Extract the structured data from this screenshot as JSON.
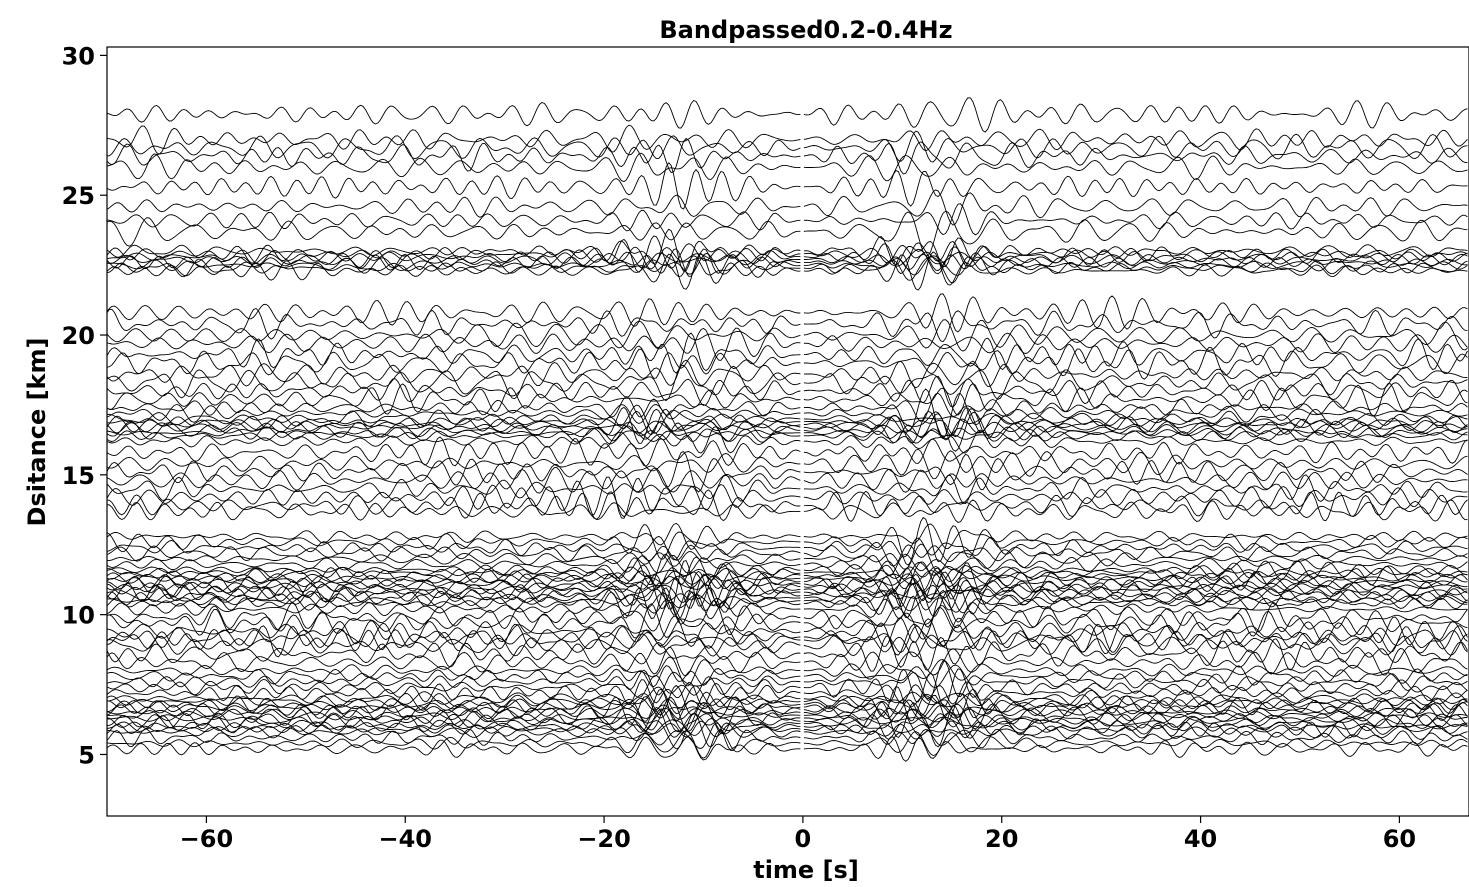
{
  "chart_data": {
    "type": "line",
    "title": "Bandpassed0.2-0.4Hz",
    "xlabel": "time [s]",
    "ylabel": "Dsitance [km]",
    "xlim": [
      -70,
      67
    ],
    "ylim": [
      2.8,
      30.3
    ],
    "xticks": [
      -60,
      -40,
      -20,
      0,
      20,
      40,
      60
    ],
    "xtick_labels": [
      "−60",
      "−40",
      "−20",
      "0",
      "20",
      "40",
      "60"
    ],
    "yticks": [
      5,
      10,
      15,
      20,
      25,
      30
    ],
    "ytick_labels": [
      "5",
      "10",
      "15",
      "20",
      "25",
      "30"
    ],
    "grid": false,
    "line_color": "#000000",
    "trace_offsets_km": [
      5.2,
      5.4,
      5.6,
      5.8,
      5.9,
      6.0,
      6.1,
      6.2,
      6.3,
      6.4,
      6.5,
      6.6,
      6.7,
      6.8,
      6.9,
      7.0,
      7.2,
      7.4,
      7.6,
      7.8,
      8.0,
      8.3,
      8.6,
      8.9,
      9.1,
      9.2,
      9.4,
      9.7,
      9.9,
      10.2,
      10.4,
      10.5,
      10.6,
      10.7,
      10.8,
      10.9,
      11.0,
      11.1,
      11.2,
      11.3,
      11.4,
      11.5,
      11.6,
      11.8,
      12.0,
      12.2,
      12.4,
      12.6,
      12.8,
      13.7,
      13.9,
      14.2,
      14.5,
      14.8,
      15.1,
      15.4,
      15.8,
      16.2,
      16.4,
      16.5,
      16.6,
      16.7,
      16.8,
      16.9,
      17.0,
      17.2,
      17.4,
      17.7,
      18.0,
      18.3,
      18.6,
      19.0,
      19.3,
      19.7,
      20.0,
      20.4,
      20.8,
      22.3,
      22.4,
      22.5,
      22.6,
      22.7,
      22.8,
      22.9,
      23.0,
      23.7,
      24.1,
      24.6,
      25.3,
      26.0,
      26.4,
      26.7,
      27.0,
      27.9
    ],
    "trace_amplitude_km": 0.4,
    "dense_bands_km": [
      [
        5.2,
        8.0
      ],
      [
        10.2,
        12.8
      ],
      [
        16.2,
        17.4
      ],
      [
        22.3,
        23.0
      ]
    ],
    "arrival_window_s": [
      -20,
      -5
    ],
    "arrival_window_s_causal": [
      5,
      20
    ]
  }
}
